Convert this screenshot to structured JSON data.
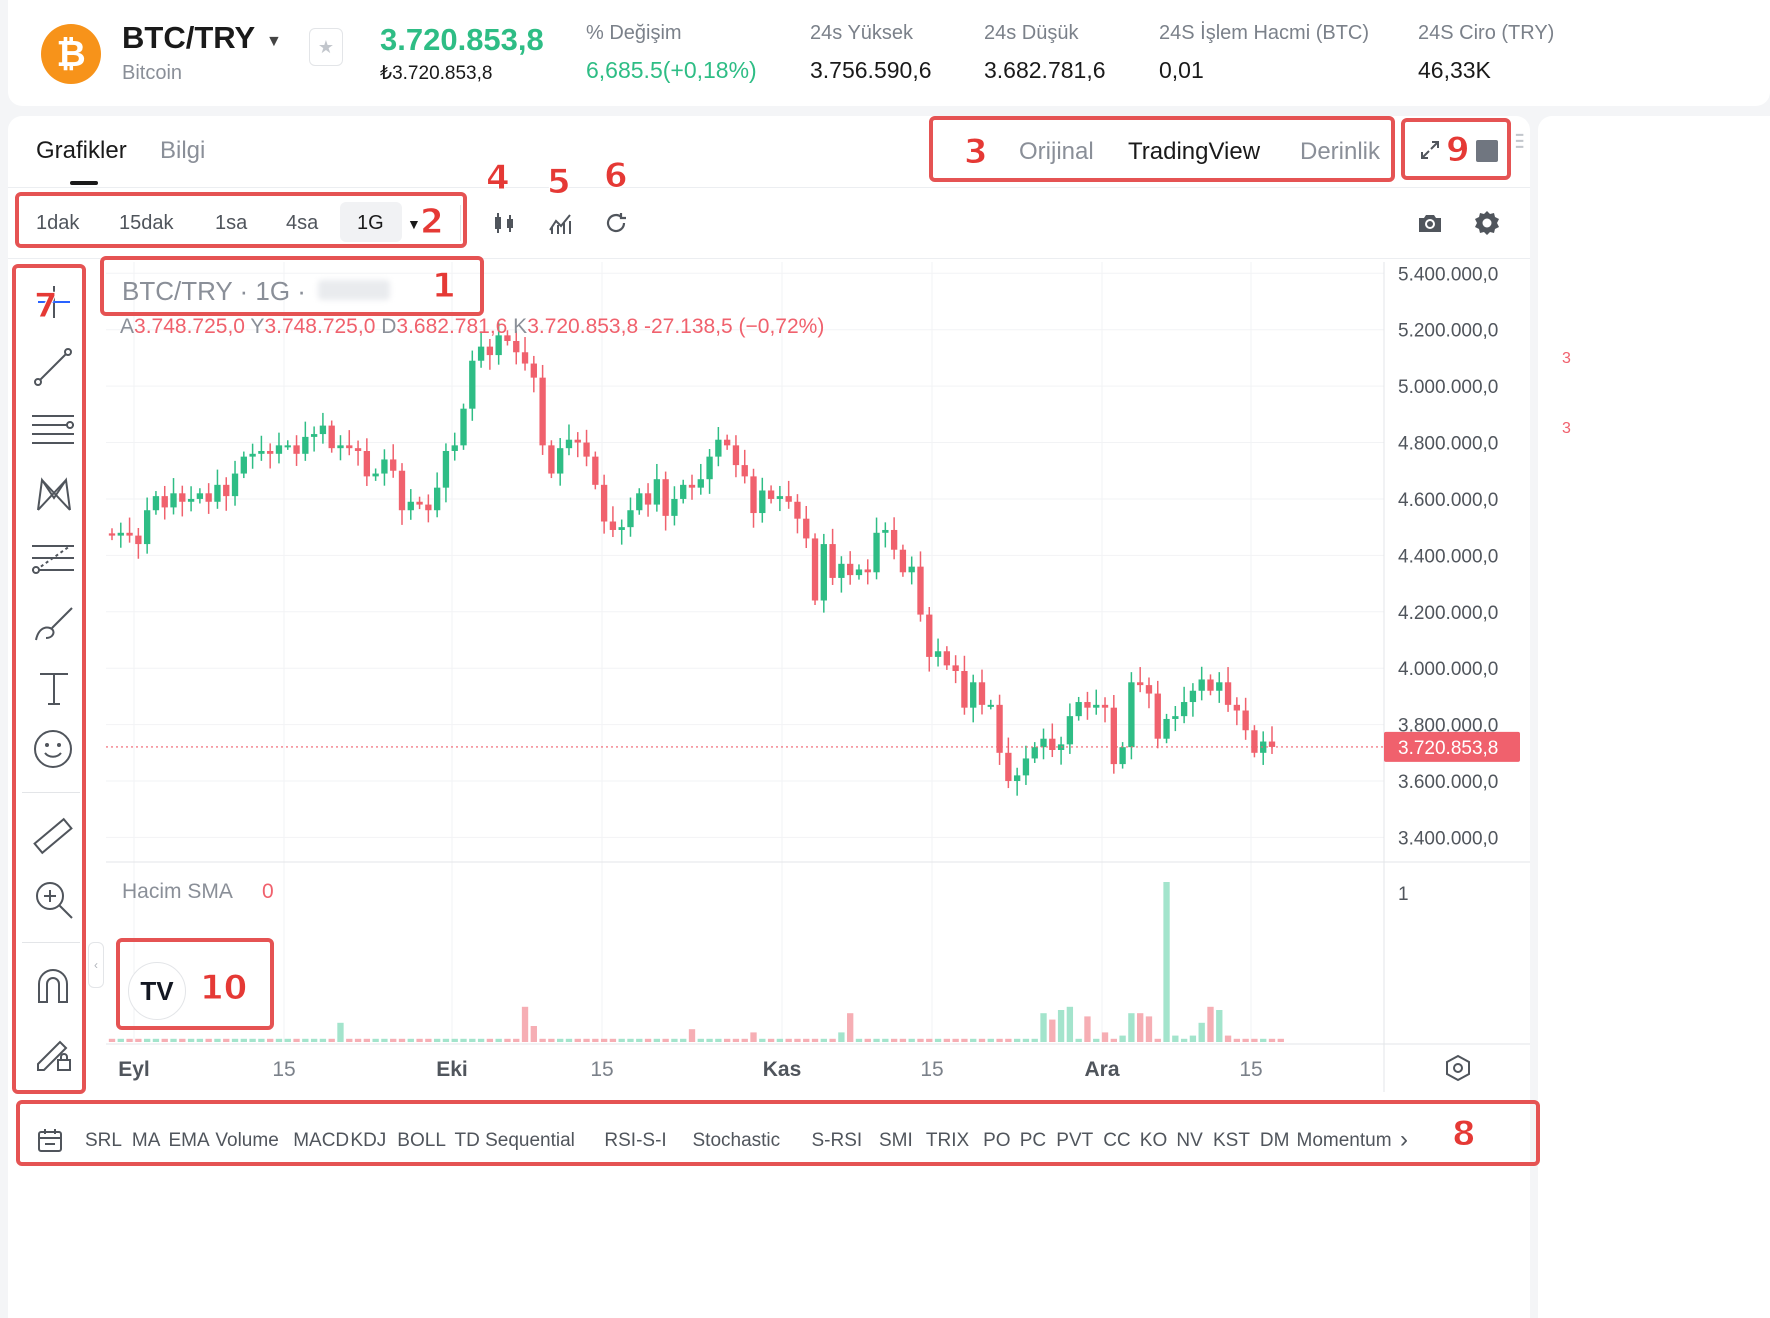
{
  "ticker": {
    "pair": "BTC/TRY",
    "coin_name": "Bitcoin",
    "logo_symbol": "₿",
    "last_price": "3.720.853,8",
    "last_price_local": "₺3.720.853,8",
    "stats": [
      {
        "label": "% Değişim",
        "value": "6,685.5(+0,18%)",
        "green": true
      },
      {
        "label": "24s Yüksek",
        "value": "3.756.590,6",
        "green": false
      },
      {
        "label": "24s Düşük",
        "value": "3.682.781,6",
        "green": false
      },
      {
        "label": "24S İşlem Hacmi (BTC)",
        "value": "0,01",
        "green": false
      },
      {
        "label": "24S Ciro (TRY)",
        "value": "46,33K",
        "green": false
      }
    ]
  },
  "tabs": {
    "charts": "Grafikler",
    "info": "Bilgi"
  },
  "view_tabs": {
    "original": "Orijinal",
    "tradingview": "TradingView",
    "depth": "Derinlik"
  },
  "timeframes": [
    "1dak",
    "15dak",
    "1sa",
    "4sa",
    "1G"
  ],
  "chart_legend": {
    "title": "BTC/TRY · 1G ·",
    "open_label": "A",
    "open": "3.748.725,0",
    "high_label": "Y",
    "high": "3.748.725,0",
    "low_label": "D",
    "low": "3.682.781,6",
    "close_label": "K",
    "close": "3.720.853,8",
    "change": "-27.138,5 (−0,72%)"
  },
  "volume_legend": {
    "label": "Hacim SMA",
    "value": "0",
    "axis_tick": "1"
  },
  "badges": [
    "1",
    "2",
    "3",
    "4",
    "5",
    "6",
    "7",
    "8",
    "9",
    "10"
  ],
  "indicators": [
    "SRL",
    "MA",
    "EMA",
    "Volume",
    "MACD",
    "KDJ",
    "BOLL",
    "TD Sequential",
    "RSI-S-I",
    "Stochastic",
    "S-RSI",
    "SMI",
    "TRIX",
    "PO",
    "PC",
    "PVT",
    "CC",
    "KO",
    "NV",
    "KST",
    "DM",
    "Momentum"
  ],
  "colors": {
    "up": "#2ebd85",
    "down": "#f0616d",
    "accent": "#f7931a",
    "annotation": "#e53935"
  },
  "icons": {
    "drawing_tools": [
      "crosshair-icon",
      "trend-line-icon",
      "horizontal-lines-icon",
      "pattern-icon",
      "fib-icon",
      "brush-icon",
      "text-icon",
      "emoji-icon",
      "ruler-icon",
      "zoom-in-icon",
      "magnet-icon",
      "lock-drawing-icon"
    ],
    "toolbar": [
      "candle-type-icon",
      "indicators-icon",
      "replay-icon",
      "camera-icon",
      "settings-icon",
      "fullscreen-icon"
    ]
  },
  "chart_data": {
    "type": "candlestick",
    "x_ticks": [
      "Eyl",
      "15",
      "Eki",
      "15",
      "Kas",
      "15",
      "Ara",
      "15"
    ],
    "y_ticks": [
      "5.400.000,0",
      "5.200.000,0",
      "5.000.000,0",
      "4.800.000,0",
      "4.600.000,0",
      "4.400.000,0",
      "4.200.000,0",
      "4.000.000,0",
      "3.800.000,0",
      "3.600.000,0",
      "3.400.000,0"
    ],
    "ylim": [
      3320000,
      5440000
    ],
    "last_price_label": "3.720.853,8",
    "last_price_value": 3720853.8,
    "close_series": [
      4470000,
      4480000,
      4470000,
      4440000,
      4560000,
      4610000,
      4570000,
      4620000,
      4590000,
      4600000,
      4620000,
      4590000,
      4650000,
      4610000,
      4690000,
      4750000,
      4760000,
      4770000,
      4760000,
      4790000,
      4790000,
      4760000,
      4820000,
      4830000,
      4860000,
      4780000,
      4790000,
      4780000,
      4770000,
      4680000,
      4690000,
      4740000,
      4700000,
      4560000,
      4590000,
      4580000,
      4560000,
      4640000,
      4770000,
      4790000,
      4920000,
      5090000,
      5140000,
      5110000,
      5180000,
      5160000,
      5120000,
      5080000,
      5030000,
      4790000,
      4690000,
      4780000,
      4810000,
      4800000,
      4750000,
      4650000,
      4520000,
      4490000,
      4500000,
      4560000,
      4620000,
      4580000,
      4670000,
      4540000,
      4600000,
      4650000,
      4640000,
      4670000,
      4750000,
      4810000,
      4790000,
      4720000,
      4680000,
      4550000,
      4630000,
      4600000,
      4610000,
      4590000,
      4530000,
      4460000,
      4240000,
      4440000,
      4320000,
      4370000,
      4330000,
      4350000,
      4340000,
      4480000,
      4490000,
      4420000,
      4340000,
      4360000,
      4190000,
      4040000,
      4060000,
      4010000,
      3990000,
      3860000,
      3950000,
      3870000,
      3870000,
      3700000,
      3600000,
      3620000,
      3680000,
      3720000,
      3750000,
      3710000,
      3730000,
      3830000,
      3880000,
      3860000,
      3870000,
      3860000,
      3660000,
      3720000,
      3950000,
      3940000,
      3910000,
      3750000,
      3820000,
      3830000,
      3880000,
      3920000,
      3960000,
      3920000,
      3950000,
      3870000,
      3850000,
      3780000,
      3700000,
      3740000,
      3720850
    ],
    "volume_series": [
      0.02,
      0.02,
      0.02,
      0.02,
      0.02,
      0.02,
      0.02,
      0.02,
      0.02,
      0.02,
      0.02,
      0.02,
      0.02,
      0.02,
      0.02,
      0.02,
      0.02,
      0.02,
      0.02,
      0.02,
      0.02,
      0.02,
      0.02,
      0.02,
      0.02,
      0.02,
      0.12,
      0.02,
      0.02,
      0.02,
      0.02,
      0.02,
      0.02,
      0.02,
      0.02,
      0.02,
      0.02,
      0.02,
      0.02,
      0.02,
      0.02,
      0.02,
      0.02,
      0.02,
      0.02,
      0.02,
      0.02,
      0.22,
      0.1,
      0.02,
      0.02,
      0.02,
      0.02,
      0.02,
      0.02,
      0.02,
      0.02,
      0.02,
      0.02,
      0.02,
      0.02,
      0.02,
      0.02,
      0.02,
      0.02,
      0.02,
      0.08,
      0.02,
      0.02,
      0.02,
      0.02,
      0.02,
      0.02,
      0.06,
      0.02,
      0.02,
      0.02,
      0.02,
      0.02,
      0.02,
      0.02,
      0.02,
      0.02,
      0.06,
      0.18,
      0.02,
      0.02,
      0.02,
      0.02,
      0.02,
      0.02,
      0.02,
      0.02,
      0.02,
      0.02,
      0.02,
      0.02,
      0.02,
      0.02,
      0.02,
      0.02,
      0.02,
      0.02,
      0.02,
      0.02,
      0.02,
      0.18,
      0.14,
      0.2,
      0.22,
      0.02,
      0.16,
      0.02,
      0.06,
      0.02,
      0.04,
      0.18,
      0.18,
      0.16,
      0.02,
      1.0,
      0.04,
      0.02,
      0.04,
      0.12,
      0.22,
      0.2,
      0.04,
      0.02,
      0.02,
      0.02,
      0.02,
      0.02,
      0.02
    ]
  }
}
